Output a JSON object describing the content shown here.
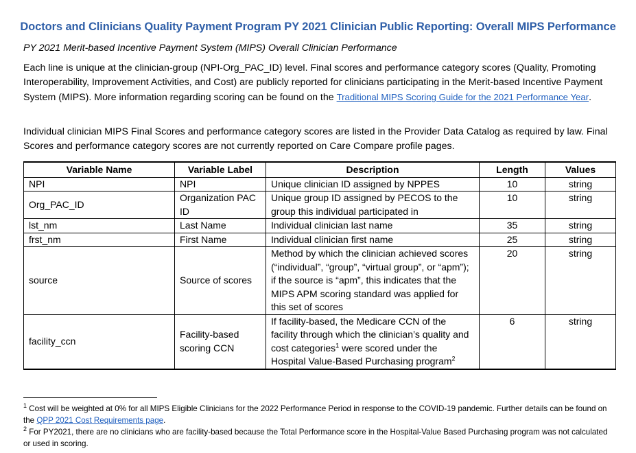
{
  "title": "Doctors and Clinicians Quality Payment Program PY 2021 Clinician Public Reporting: Overall MIPS Performance",
  "subtitle": "PY 2021 Merit-based Incentive Payment System (MIPS) Overall Clinician Performance",
  "para1_text": "Each line is unique at the clinician-group (NPI-Org_PAC_ID) level. Final scores and performance category scores (Quality, Promoting Interoperability, Improvement Activities, and Cost) are publicly reported for clinicians participating in the Merit-based Incentive Payment System (MIPS). More information regarding scoring can be found on the ",
  "para1_link": "Traditional MIPS Scoring Guide for the 2021 Performance Year",
  "para1_end": ".",
  "para2": "Individual clinician MIPS Final Scores and performance category scores are listed in the Provider Data Catalog as required by law. Final Scores and performance category scores are not currently reported on Care Compare profile pages.",
  "table": {
    "headers": [
      "Variable Name",
      "Variable Label",
      "Description",
      "Length",
      "Values"
    ],
    "rows": [
      {
        "name": "NPI",
        "label": "NPI",
        "description": "Unique clinician ID assigned by NPPES",
        "length": "10",
        "values": "string"
      },
      {
        "name": "Org_PAC_ID",
        "label": "Organization PAC ID",
        "description": "Unique group ID assigned by PECOS to the group this individual participated in",
        "length": "10",
        "values": "string"
      },
      {
        "name": "lst_nm",
        "label": "Last Name",
        "description": "Individual clinician last name",
        "length": "35",
        "values": "string"
      },
      {
        "name": "frst_nm",
        "label": "First Name",
        "description": "Individual clinician first name",
        "length": "25",
        "values": "string"
      },
      {
        "name": "source",
        "label": "Source of scores",
        "description": "Method by which the clinician achieved scores (“individual”, “group”, “virtual group”, or “apm”); if the source is “apm”, this indicates that the MIPS APM scoring standard was applied for this set of scores",
        "length": "20",
        "values": "string"
      },
      {
        "name": "facility_ccn",
        "label": "Facility-based scoring CCN",
        "description_a": "If facility-based, the Medicare CCN of the facility through which the clinician’s quality and cost categories",
        "sup_a": "1",
        "description_b": " were scored under the Hospital Value-Based Purchasing program",
        "sup_b": "2",
        "length": "6",
        "values": "string"
      }
    ]
  },
  "footnotes": {
    "fn1_mark": "1",
    "fn1_text": " Cost will be weighted at 0% for all MIPS Eligible Clinicians for the 2022 Performance Period in response to the COVID-19 pandemic. Further details can be found on the ",
    "fn1_link": "QPP 2021 Cost Requirements page",
    "fn1_end": ".",
    "fn2_mark": "2",
    "fn2_text": " For PY2021, there are no clinicians who are facility-based because the Total Performance score in the Hospital-Value Based Purchasing program was not calculated or used in scoring."
  },
  "colors": {
    "title": "#2f5fa8",
    "link": "#1f5fbf"
  }
}
